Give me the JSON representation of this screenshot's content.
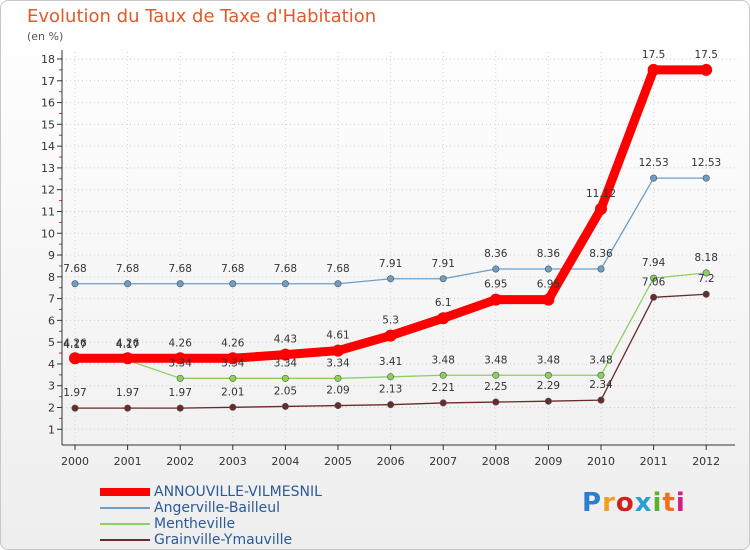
{
  "chart_data": {
    "type": "line",
    "title": "Evolution du Taux de Taxe d'Habitation",
    "subtitle": "(en %)",
    "categories": [
      "2000",
      "2001",
      "2002",
      "2003",
      "2004",
      "2005",
      "2006",
      "2007",
      "2008",
      "2009",
      "2010",
      "2011",
      "2012"
    ],
    "y_ticks": [
      "1",
      "2",
      "3",
      "4",
      "5",
      "6",
      "7",
      "8",
      "9",
      "10",
      "11",
      "12",
      "13",
      "14",
      "15",
      "16",
      "17",
      "18"
    ],
    "ylim": [
      1,
      18
    ],
    "series": [
      {
        "name": "ANNOUVILLE-VILMESNIL",
        "color": "#ff0000",
        "values": [
          4.26,
          4.26,
          4.26,
          4.26,
          4.43,
          4.61,
          5.3,
          6.1,
          6.95,
          6.95,
          11.12,
          17.5,
          17.5
        ],
        "labels": [
          "4.26",
          "4.26",
          "4.26",
          "4.26",
          "4.43",
          "4.61",
          "5.3",
          "6.1",
          "6.95",
          "6.95",
          "11.12",
          "17.5",
          "17.5"
        ]
      },
      {
        "name": "Angerville-Bailleul",
        "color": "#6c9ec8",
        "values": [
          7.68,
          7.68,
          7.68,
          7.68,
          7.68,
          7.68,
          7.91,
          7.91,
          8.36,
          8.36,
          8.36,
          12.53,
          12.53
        ],
        "labels": [
          "7.68",
          "7.68",
          "7.68",
          "7.68",
          "7.68",
          "7.68",
          "7.91",
          "7.91",
          "8.36",
          "8.36",
          "8.36",
          "12.53",
          "12.53"
        ]
      },
      {
        "name": "Mentheville",
        "color": "#8cd060",
        "values": [
          4.17,
          4.17,
          3.34,
          3.34,
          3.34,
          3.34,
          3.41,
          3.48,
          3.48,
          3.48,
          3.48,
          7.94,
          8.18
        ],
        "labels": [
          "4.17",
          "4.17",
          "3.34",
          "3.34",
          "3.34",
          "3.34",
          "3.41",
          "3.48",
          "3.48",
          "3.48",
          "3.48",
          "7.94",
          "8.18"
        ]
      },
      {
        "name": "Grainville-Ymauville",
        "color": "#6a2a2a",
        "values": [
          1.97,
          1.97,
          1.97,
          2.01,
          2.05,
          2.09,
          2.13,
          2.21,
          2.25,
          2.29,
          2.34,
          7.06,
          7.2
        ],
        "labels": [
          "1.97",
          "1.97",
          "1.97",
          "2.01",
          "2.05",
          "2.09",
          "2.13",
          "2.21",
          "2.25",
          "2.29",
          "2.34",
          "7.06",
          "7.2"
        ]
      }
    ]
  },
  "logo": {
    "letters": [
      "P",
      "r",
      "o",
      "x",
      "i",
      "t",
      "i"
    ],
    "colors": [
      "#2a7fd0",
      "#f0a020",
      "#d02020",
      "#2aa0d0",
      "#60b030",
      "#f07020",
      "#d02080"
    ]
  }
}
